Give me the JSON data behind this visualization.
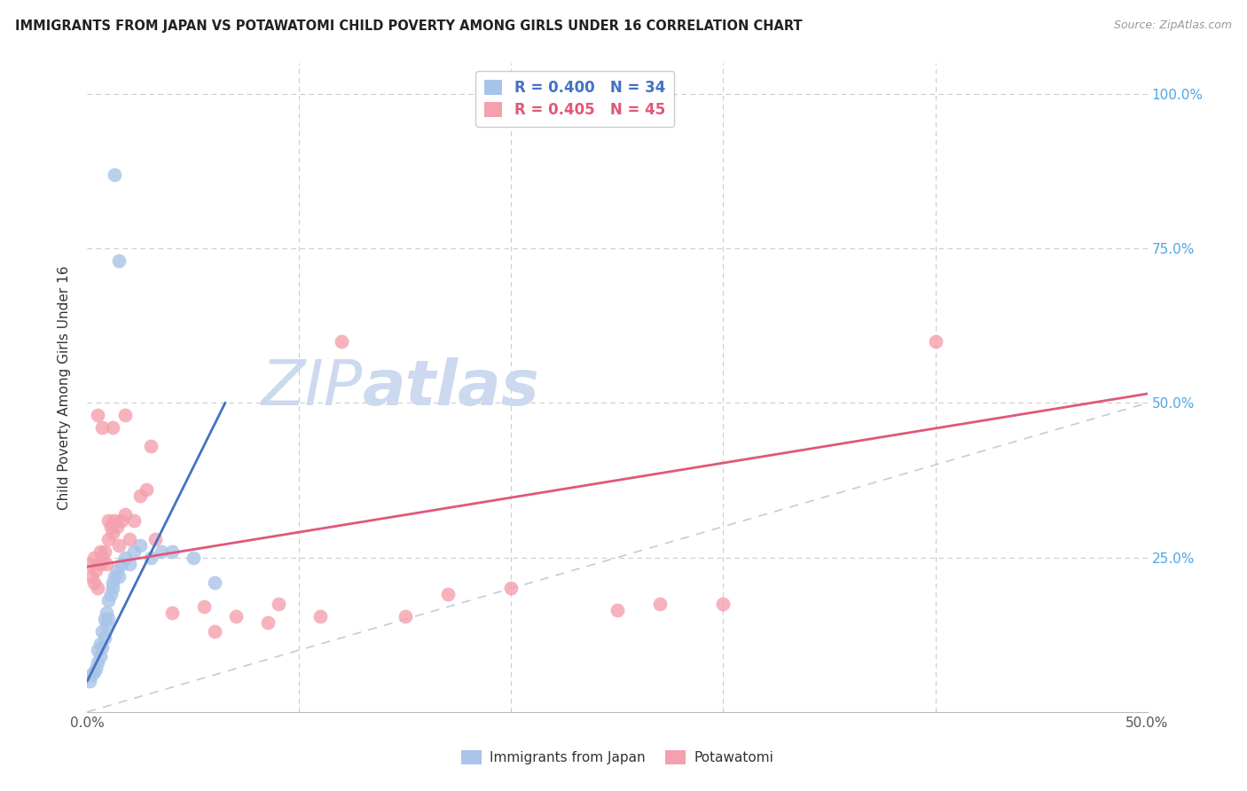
{
  "title": "IMMIGRANTS FROM JAPAN VS POTAWATOMI CHILD POVERTY AMONG GIRLS UNDER 16 CORRELATION CHART",
  "source": "Source: ZipAtlas.com",
  "ylabel": "Child Poverty Among Girls Under 16",
  "xlim": [
    0.0,
    0.5
  ],
  "ylim": [
    0.0,
    1.05
  ],
  "blue_color": "#a8c4e8",
  "pink_color": "#f4a0ae",
  "blue_line_color": "#4472c4",
  "pink_line_color": "#e05878",
  "right_tick_color": "#4da6e8",
  "watermark_color": "#ccd9ee",
  "legend1_r": "0.400",
  "legend1_n": "34",
  "legend2_r": "0.405",
  "legend2_n": "45",
  "japan_x": [
    0.001,
    0.002,
    0.003,
    0.004,
    0.005,
    0.005,
    0.006,
    0.006,
    0.007,
    0.007,
    0.008,
    0.008,
    0.009,
    0.009,
    0.01,
    0.01,
    0.011,
    0.012,
    0.012,
    0.013,
    0.014,
    0.015,
    0.016,
    0.018,
    0.02,
    0.022,
    0.025,
    0.03,
    0.035,
    0.04,
    0.05,
    0.06,
    0.013,
    0.015
  ],
  "japan_y": [
    0.05,
    0.06,
    0.065,
    0.07,
    0.08,
    0.1,
    0.09,
    0.11,
    0.105,
    0.13,
    0.12,
    0.15,
    0.14,
    0.16,
    0.15,
    0.18,
    0.19,
    0.2,
    0.21,
    0.22,
    0.23,
    0.22,
    0.24,
    0.25,
    0.24,
    0.26,
    0.27,
    0.25,
    0.26,
    0.26,
    0.25,
    0.21,
    0.87,
    0.73
  ],
  "potawatomi_x": [
    0.001,
    0.002,
    0.003,
    0.003,
    0.004,
    0.005,
    0.005,
    0.006,
    0.006,
    0.007,
    0.008,
    0.009,
    0.01,
    0.01,
    0.011,
    0.012,
    0.013,
    0.014,
    0.015,
    0.016,
    0.018,
    0.02,
    0.022,
    0.025,
    0.028,
    0.032,
    0.04,
    0.055,
    0.06,
    0.07,
    0.085,
    0.09,
    0.11,
    0.12,
    0.15,
    0.17,
    0.2,
    0.25,
    0.27,
    0.3,
    0.007,
    0.012,
    0.018,
    0.03,
    0.4
  ],
  "potawatomi_y": [
    0.24,
    0.22,
    0.21,
    0.25,
    0.23,
    0.2,
    0.48,
    0.24,
    0.26,
    0.25,
    0.26,
    0.24,
    0.28,
    0.31,
    0.3,
    0.29,
    0.31,
    0.3,
    0.27,
    0.31,
    0.32,
    0.28,
    0.31,
    0.35,
    0.36,
    0.28,
    0.16,
    0.17,
    0.13,
    0.155,
    0.145,
    0.175,
    0.155,
    0.6,
    0.155,
    0.19,
    0.2,
    0.165,
    0.175,
    0.175,
    0.46,
    0.46,
    0.48,
    0.43,
    0.6
  ],
  "blue_line_x0": 0.0,
  "blue_line_y0": 0.05,
  "blue_line_x1": 0.065,
  "blue_line_y1": 0.5,
  "pink_line_x0": 0.0,
  "pink_line_y0": 0.235,
  "pink_line_x1": 0.5,
  "pink_line_y1": 0.515
}
